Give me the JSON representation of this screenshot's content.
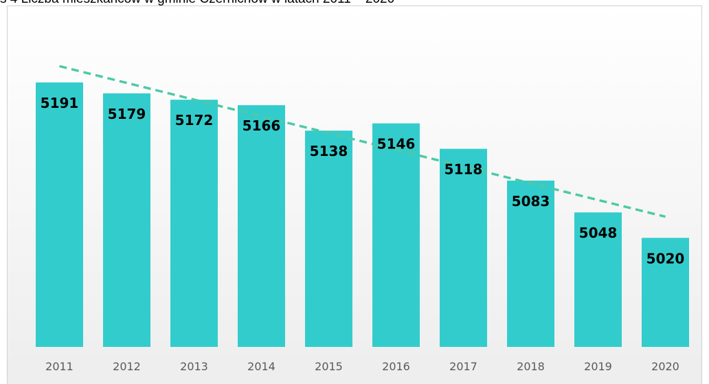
{
  "chart_data": {
    "type": "bar",
    "title": "s 4 Liczba mieszkańców w gminie Czernichów w latach 2011 – 2020",
    "categories": [
      "2011",
      "2012",
      "2013",
      "2014",
      "2015",
      "2016",
      "2017",
      "2018",
      "2019",
      "2020"
    ],
    "values": [
      5191,
      5179,
      5172,
      5166,
      5138,
      5146,
      5118,
      5083,
      5048,
      5020
    ],
    "color": "#33cccc",
    "trendline": "linear",
    "trendline_color": "#4ec9a6",
    "ylim": [
      4900,
      5250
    ]
  }
}
